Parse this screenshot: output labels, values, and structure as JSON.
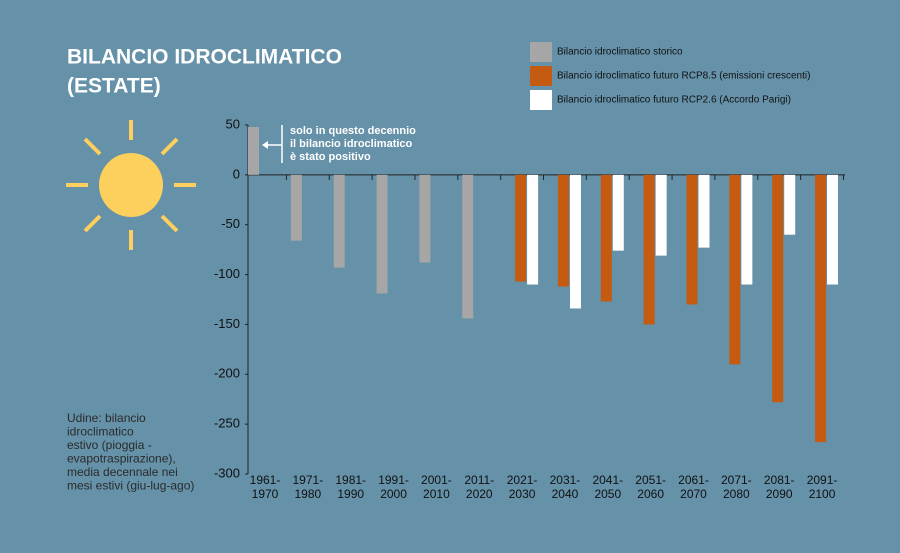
{
  "chart_data": {
    "type": "bar",
    "title": [
      "BILANCIO IDROCLIMATICO",
      "(ESTATE)"
    ],
    "categories": [
      [
        "1961-",
        "1970"
      ],
      [
        "1971-",
        "1980"
      ],
      [
        "1981-",
        "1990"
      ],
      [
        "1991-",
        "2000"
      ],
      [
        "2001-",
        "2010"
      ],
      [
        "2011-",
        "2020"
      ],
      [
        "2021-",
        "2030"
      ],
      [
        "2031-",
        "2040"
      ],
      [
        "2041-",
        "2050"
      ],
      [
        "2051-",
        "2060"
      ],
      [
        "2061-",
        "2070"
      ],
      [
        "2071-",
        "2080"
      ],
      [
        "2081-",
        "2090"
      ],
      [
        "2091-",
        "2100"
      ]
    ],
    "series": [
      {
        "name": "Bilancio idroclimatico storico",
        "color": "#a6a6a6",
        "values": [
          48,
          -66,
          -93,
          -119,
          -88,
          -144,
          null,
          null,
          null,
          null,
          null,
          null,
          null,
          null
        ]
      },
      {
        "name": "Bilancio idroclimatico futuro RCP8.5 (emissioni crescenti)",
        "color": "#c55a11",
        "values": [
          null,
          null,
          null,
          null,
          null,
          null,
          -107,
          -112,
          -127,
          -150,
          -130,
          -190,
          -228,
          -268
        ]
      },
      {
        "name": "Bilancio idroclimatico futuro RCP2.6 (Accordo Parigi)",
        "color": "#ffffff",
        "values": [
          null,
          null,
          null,
          null,
          null,
          null,
          -110,
          -134,
          -76,
          -81,
          -73,
          -110,
          -60,
          -110
        ]
      }
    ],
    "ylim": [
      50,
      -300
    ],
    "yticks": [
      50,
      0,
      -50,
      -100,
      -150,
      -200,
      -250,
      -300
    ],
    "annotation": [
      "solo in questo decennio",
      "il bilancio idroclimatico",
      "è stato positivo"
    ],
    "note": [
      "Udine: bilancio",
      "idroclimatico",
      "estivo (pioggia -",
      "evapotraspirazione),",
      "media decennale nei",
      "mesi estivi (giu-lug-ago)"
    ]
  }
}
